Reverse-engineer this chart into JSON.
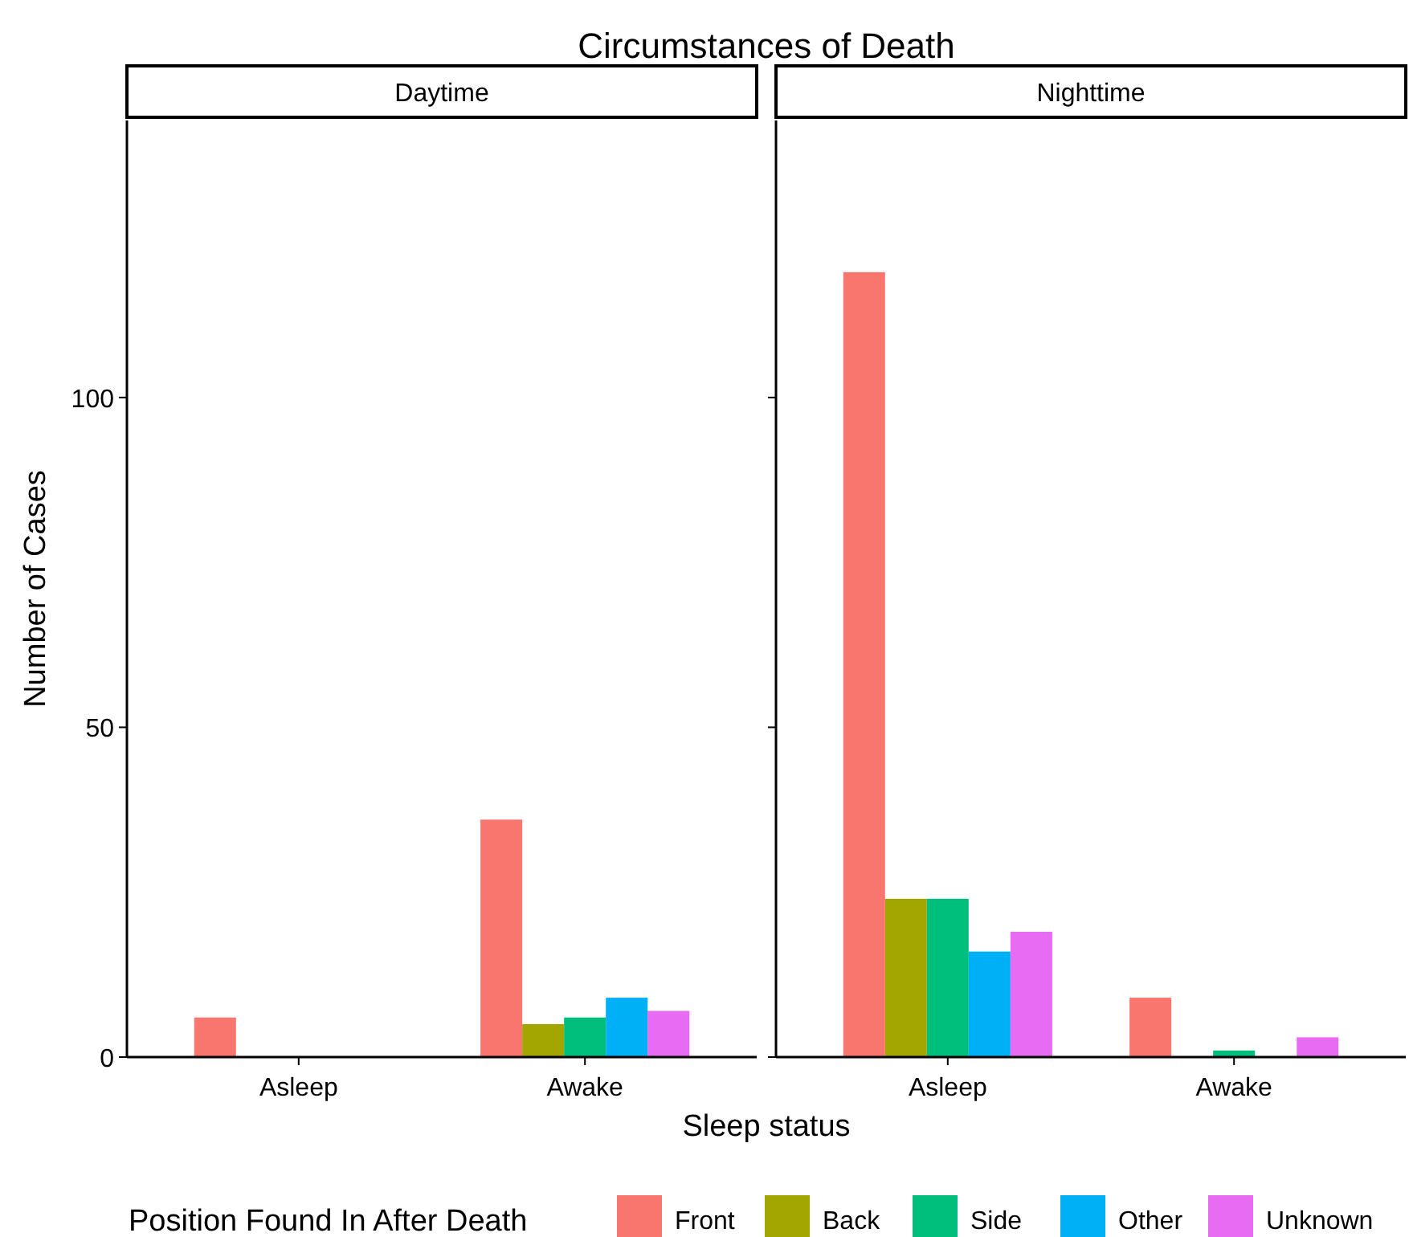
{
  "chart_data": [
    {
      "type": "bar",
      "title": "Circumstances of Death",
      "subtitle": "Daytime",
      "xlabel": "Sleep status",
      "ylabel": "Number of Cases",
      "legend_title": "Position Found In After Death",
      "legend": "bottom",
      "categories": [
        "Asleep",
        "Awake"
      ],
      "ylim": [
        0,
        142
      ],
      "yticks": [
        0,
        50,
        100
      ],
      "grid": false,
      "series": [
        {
          "name": "Front",
          "color": "#f8766d",
          "values": [
            6,
            36
          ]
        },
        {
          "name": "Back",
          "color": "#a3a500",
          "values": [
            0,
            5
          ]
        },
        {
          "name": "Side",
          "color": "#00bf7d",
          "values": [
            0,
            6
          ]
        },
        {
          "name": "Other",
          "color": "#00b0f6",
          "values": [
            0,
            9
          ]
        },
        {
          "name": "Unknown",
          "color": "#e76bf3",
          "values": [
            0,
            7
          ]
        }
      ]
    },
    {
      "type": "bar",
      "subtitle": "Nighttime",
      "categories": [
        "Asleep",
        "Awake"
      ],
      "ylim": [
        0,
        142
      ],
      "yticks": [
        0,
        50,
        100
      ],
      "grid": false,
      "tick_labels": "x",
      "series": [
        {
          "color": "#f8766d",
          "values": [
            119,
            9
          ]
        },
        {
          "color": "#a3a500",
          "values": [
            24,
            0
          ]
        },
        {
          "color": "#00bf7d",
          "values": [
            24,
            1
          ]
        },
        {
          "color": "#00b0f6",
          "values": [
            16,
            0
          ]
        },
        {
          "color": "#e76bf3",
          "values": [
            19,
            3
          ]
        }
      ]
    }
  ]
}
